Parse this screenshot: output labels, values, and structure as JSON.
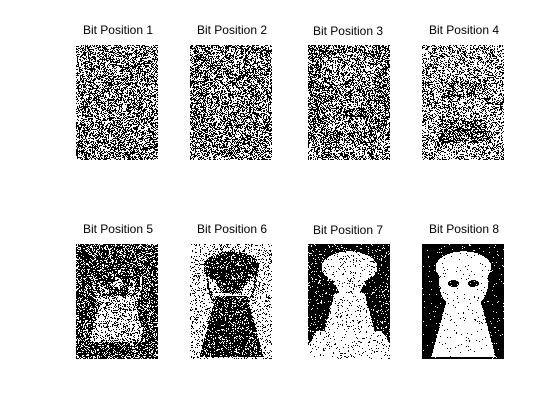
{
  "figure": {
    "background": "#ffffff",
    "panels": [
      {
        "title": "Bit Position 1",
        "bit": 1
      },
      {
        "title": "Bit Position 2",
        "bit": 2
      },
      {
        "title": "Bit Position 3",
        "bit": 3
      },
      {
        "title": "Bit Position 4",
        "bit": 4
      },
      {
        "title": "Bit Position 5",
        "bit": 5
      },
      {
        "title": "Bit Position 6",
        "bit": 6
      },
      {
        "title": "Bit Position 7",
        "bit": 7
      },
      {
        "title": "Bit Position 8",
        "bit": 8
      }
    ],
    "colors": {
      "on": "#ffffff",
      "off": "#000000"
    }
  }
}
